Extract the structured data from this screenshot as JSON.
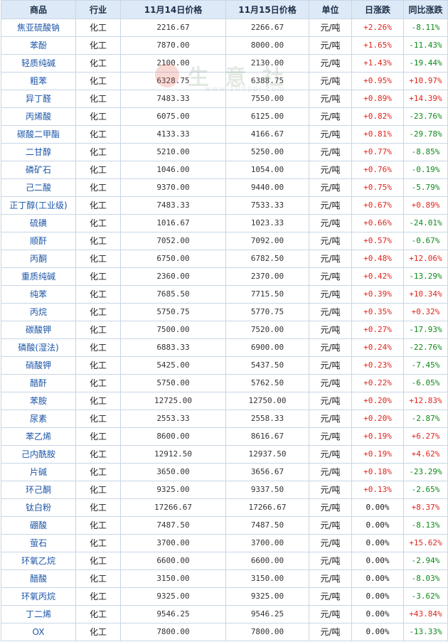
{
  "header": [
    "商品",
    "行业",
    "11月14日价格",
    "11月15日价格",
    "单位",
    "日涨跌",
    "同比涨跌"
  ],
  "watermark": {
    "text": "生 意 社",
    "sub": "www.100ppi.com"
  },
  "rows": [
    {
      "name": "焦亚硫酸钠",
      "industry": "化工",
      "p1": "2216.67",
      "p2": "2266.67",
      "unit": "元/吨",
      "day": "+2.26%",
      "yoy": "-8.11%"
    },
    {
      "name": "苯酚",
      "industry": "化工",
      "p1": "7870.00",
      "p2": "8000.00",
      "unit": "元/吨",
      "day": "+1.65%",
      "yoy": "-11.43%"
    },
    {
      "name": "轻质纯碱",
      "industry": "化工",
      "p1": "2100.00",
      "p2": "2130.00",
      "unit": "元/吨",
      "day": "+1.43%",
      "yoy": "-19.44%"
    },
    {
      "name": "粗苯",
      "industry": "化工",
      "p1": "6328.75",
      "p2": "6388.75",
      "unit": "元/吨",
      "day": "+0.95%",
      "yoy": "+10.97%"
    },
    {
      "name": "异丁醛",
      "industry": "化工",
      "p1": "7483.33",
      "p2": "7550.00",
      "unit": "元/吨",
      "day": "+0.89%",
      "yoy": "+14.39%"
    },
    {
      "name": "丙烯酸",
      "industry": "化工",
      "p1": "6075.00",
      "p2": "6125.00",
      "unit": "元/吨",
      "day": "+0.82%",
      "yoy": "-23.76%"
    },
    {
      "name": "碳酸二甲酯",
      "industry": "化工",
      "p1": "4133.33",
      "p2": "4166.67",
      "unit": "元/吨",
      "day": "+0.81%",
      "yoy": "-29.78%"
    },
    {
      "name": "二甘醇",
      "industry": "化工",
      "p1": "5210.00",
      "p2": "5250.00",
      "unit": "元/吨",
      "day": "+0.77%",
      "yoy": "-8.85%"
    },
    {
      "name": "磷矿石",
      "industry": "化工",
      "p1": "1046.00",
      "p2": "1054.00",
      "unit": "元/吨",
      "day": "+0.76%",
      "yoy": "-0.19%"
    },
    {
      "name": "己二酸",
      "industry": "化工",
      "p1": "9370.00",
      "p2": "9440.00",
      "unit": "元/吨",
      "day": "+0.75%",
      "yoy": "-5.79%"
    },
    {
      "name": "正丁醇(工业级)",
      "industry": "化工",
      "p1": "7483.33",
      "p2": "7533.33",
      "unit": "元/吨",
      "day": "+0.67%",
      "yoy": "+0.89%"
    },
    {
      "name": "硫磺",
      "industry": "化工",
      "p1": "1016.67",
      "p2": "1023.33",
      "unit": "元/吨",
      "day": "+0.66%",
      "yoy": "-24.01%"
    },
    {
      "name": "顺酐",
      "industry": "化工",
      "p1": "7052.00",
      "p2": "7092.00",
      "unit": "元/吨",
      "day": "+0.57%",
      "yoy": "-0.67%"
    },
    {
      "name": "丙酮",
      "industry": "化工",
      "p1": "6750.00",
      "p2": "6782.50",
      "unit": "元/吨",
      "day": "+0.48%",
      "yoy": "+12.06%"
    },
    {
      "name": "重质纯碱",
      "industry": "化工",
      "p1": "2360.00",
      "p2": "2370.00",
      "unit": "元/吨",
      "day": "+0.42%",
      "yoy": "-13.29%"
    },
    {
      "name": "纯苯",
      "industry": "化工",
      "p1": "7685.50",
      "p2": "7715.50",
      "unit": "元/吨",
      "day": "+0.39%",
      "yoy": "+10.34%"
    },
    {
      "name": "丙烷",
      "industry": "化工",
      "p1": "5750.75",
      "p2": "5770.75",
      "unit": "元/吨",
      "day": "+0.35%",
      "yoy": "+0.32%"
    },
    {
      "name": "碳酸钾",
      "industry": "化工",
      "p1": "7500.00",
      "p2": "7520.00",
      "unit": "元/吨",
      "day": "+0.27%",
      "yoy": "-17.93%"
    },
    {
      "name": "磷酸(湿法)",
      "industry": "化工",
      "p1": "6883.33",
      "p2": "6900.00",
      "unit": "元/吨",
      "day": "+0.24%",
      "yoy": "-22.76%"
    },
    {
      "name": "硝酸钾",
      "industry": "化工",
      "p1": "5425.00",
      "p2": "5437.50",
      "unit": "元/吨",
      "day": "+0.23%",
      "yoy": "-7.45%"
    },
    {
      "name": "醋酐",
      "industry": "化工",
      "p1": "5750.00",
      "p2": "5762.50",
      "unit": "元/吨",
      "day": "+0.22%",
      "yoy": "-6.05%"
    },
    {
      "name": "苯胺",
      "industry": "化工",
      "p1": "12725.00",
      "p2": "12750.00",
      "unit": "元/吨",
      "day": "+0.20%",
      "yoy": "+12.83%"
    },
    {
      "name": "尿素",
      "industry": "化工",
      "p1": "2553.33",
      "p2": "2558.33",
      "unit": "元/吨",
      "day": "+0.20%",
      "yoy": "-2.87%"
    },
    {
      "name": "苯乙烯",
      "industry": "化工",
      "p1": "8600.00",
      "p2": "8616.67",
      "unit": "元/吨",
      "day": "+0.19%",
      "yoy": "+6.27%"
    },
    {
      "name": "己内酰胺",
      "industry": "化工",
      "p1": "12912.50",
      "p2": "12937.50",
      "unit": "元/吨",
      "day": "+0.19%",
      "yoy": "+4.62%"
    },
    {
      "name": "片碱",
      "industry": "化工",
      "p1": "3650.00",
      "p2": "3656.67",
      "unit": "元/吨",
      "day": "+0.18%",
      "yoy": "-23.29%"
    },
    {
      "name": "环己酮",
      "industry": "化工",
      "p1": "9325.00",
      "p2": "9337.50",
      "unit": "元/吨",
      "day": "+0.13%",
      "yoy": "-2.65%"
    },
    {
      "name": "钛白粉",
      "industry": "化工",
      "p1": "17266.67",
      "p2": "17266.67",
      "unit": "元/吨",
      "day": "0.00%",
      "yoy": "+8.37%"
    },
    {
      "name": "硼酸",
      "industry": "化工",
      "p1": "7487.50",
      "p2": "7487.50",
      "unit": "元/吨",
      "day": "0.00%",
      "yoy": "-8.13%"
    },
    {
      "name": "萤石",
      "industry": "化工",
      "p1": "3700.00",
      "p2": "3700.00",
      "unit": "元/吨",
      "day": "0.00%",
      "yoy": "+15.62%"
    },
    {
      "name": "环氧乙烷",
      "industry": "化工",
      "p1": "6600.00",
      "p2": "6600.00",
      "unit": "元/吨",
      "day": "0.00%",
      "yoy": "-2.94%"
    },
    {
      "name": "醋酸",
      "industry": "化工",
      "p1": "3150.00",
      "p2": "3150.00",
      "unit": "元/吨",
      "day": "0.00%",
      "yoy": "-8.03%"
    },
    {
      "name": "环氧丙烷",
      "industry": "化工",
      "p1": "9325.00",
      "p2": "9325.00",
      "unit": "元/吨",
      "day": "0.00%",
      "yoy": "-3.62%"
    },
    {
      "name": "丁二烯",
      "industry": "化工",
      "p1": "9546.25",
      "p2": "9546.25",
      "unit": "元/吨",
      "day": "0.00%",
      "yoy": "+43.84%"
    },
    {
      "name": "OX",
      "industry": "化工",
      "p1": "7800.00",
      "p2": "7800.00",
      "unit": "元/吨",
      "day": "0.00%",
      "yoy": "-13.33%"
    }
  ]
}
